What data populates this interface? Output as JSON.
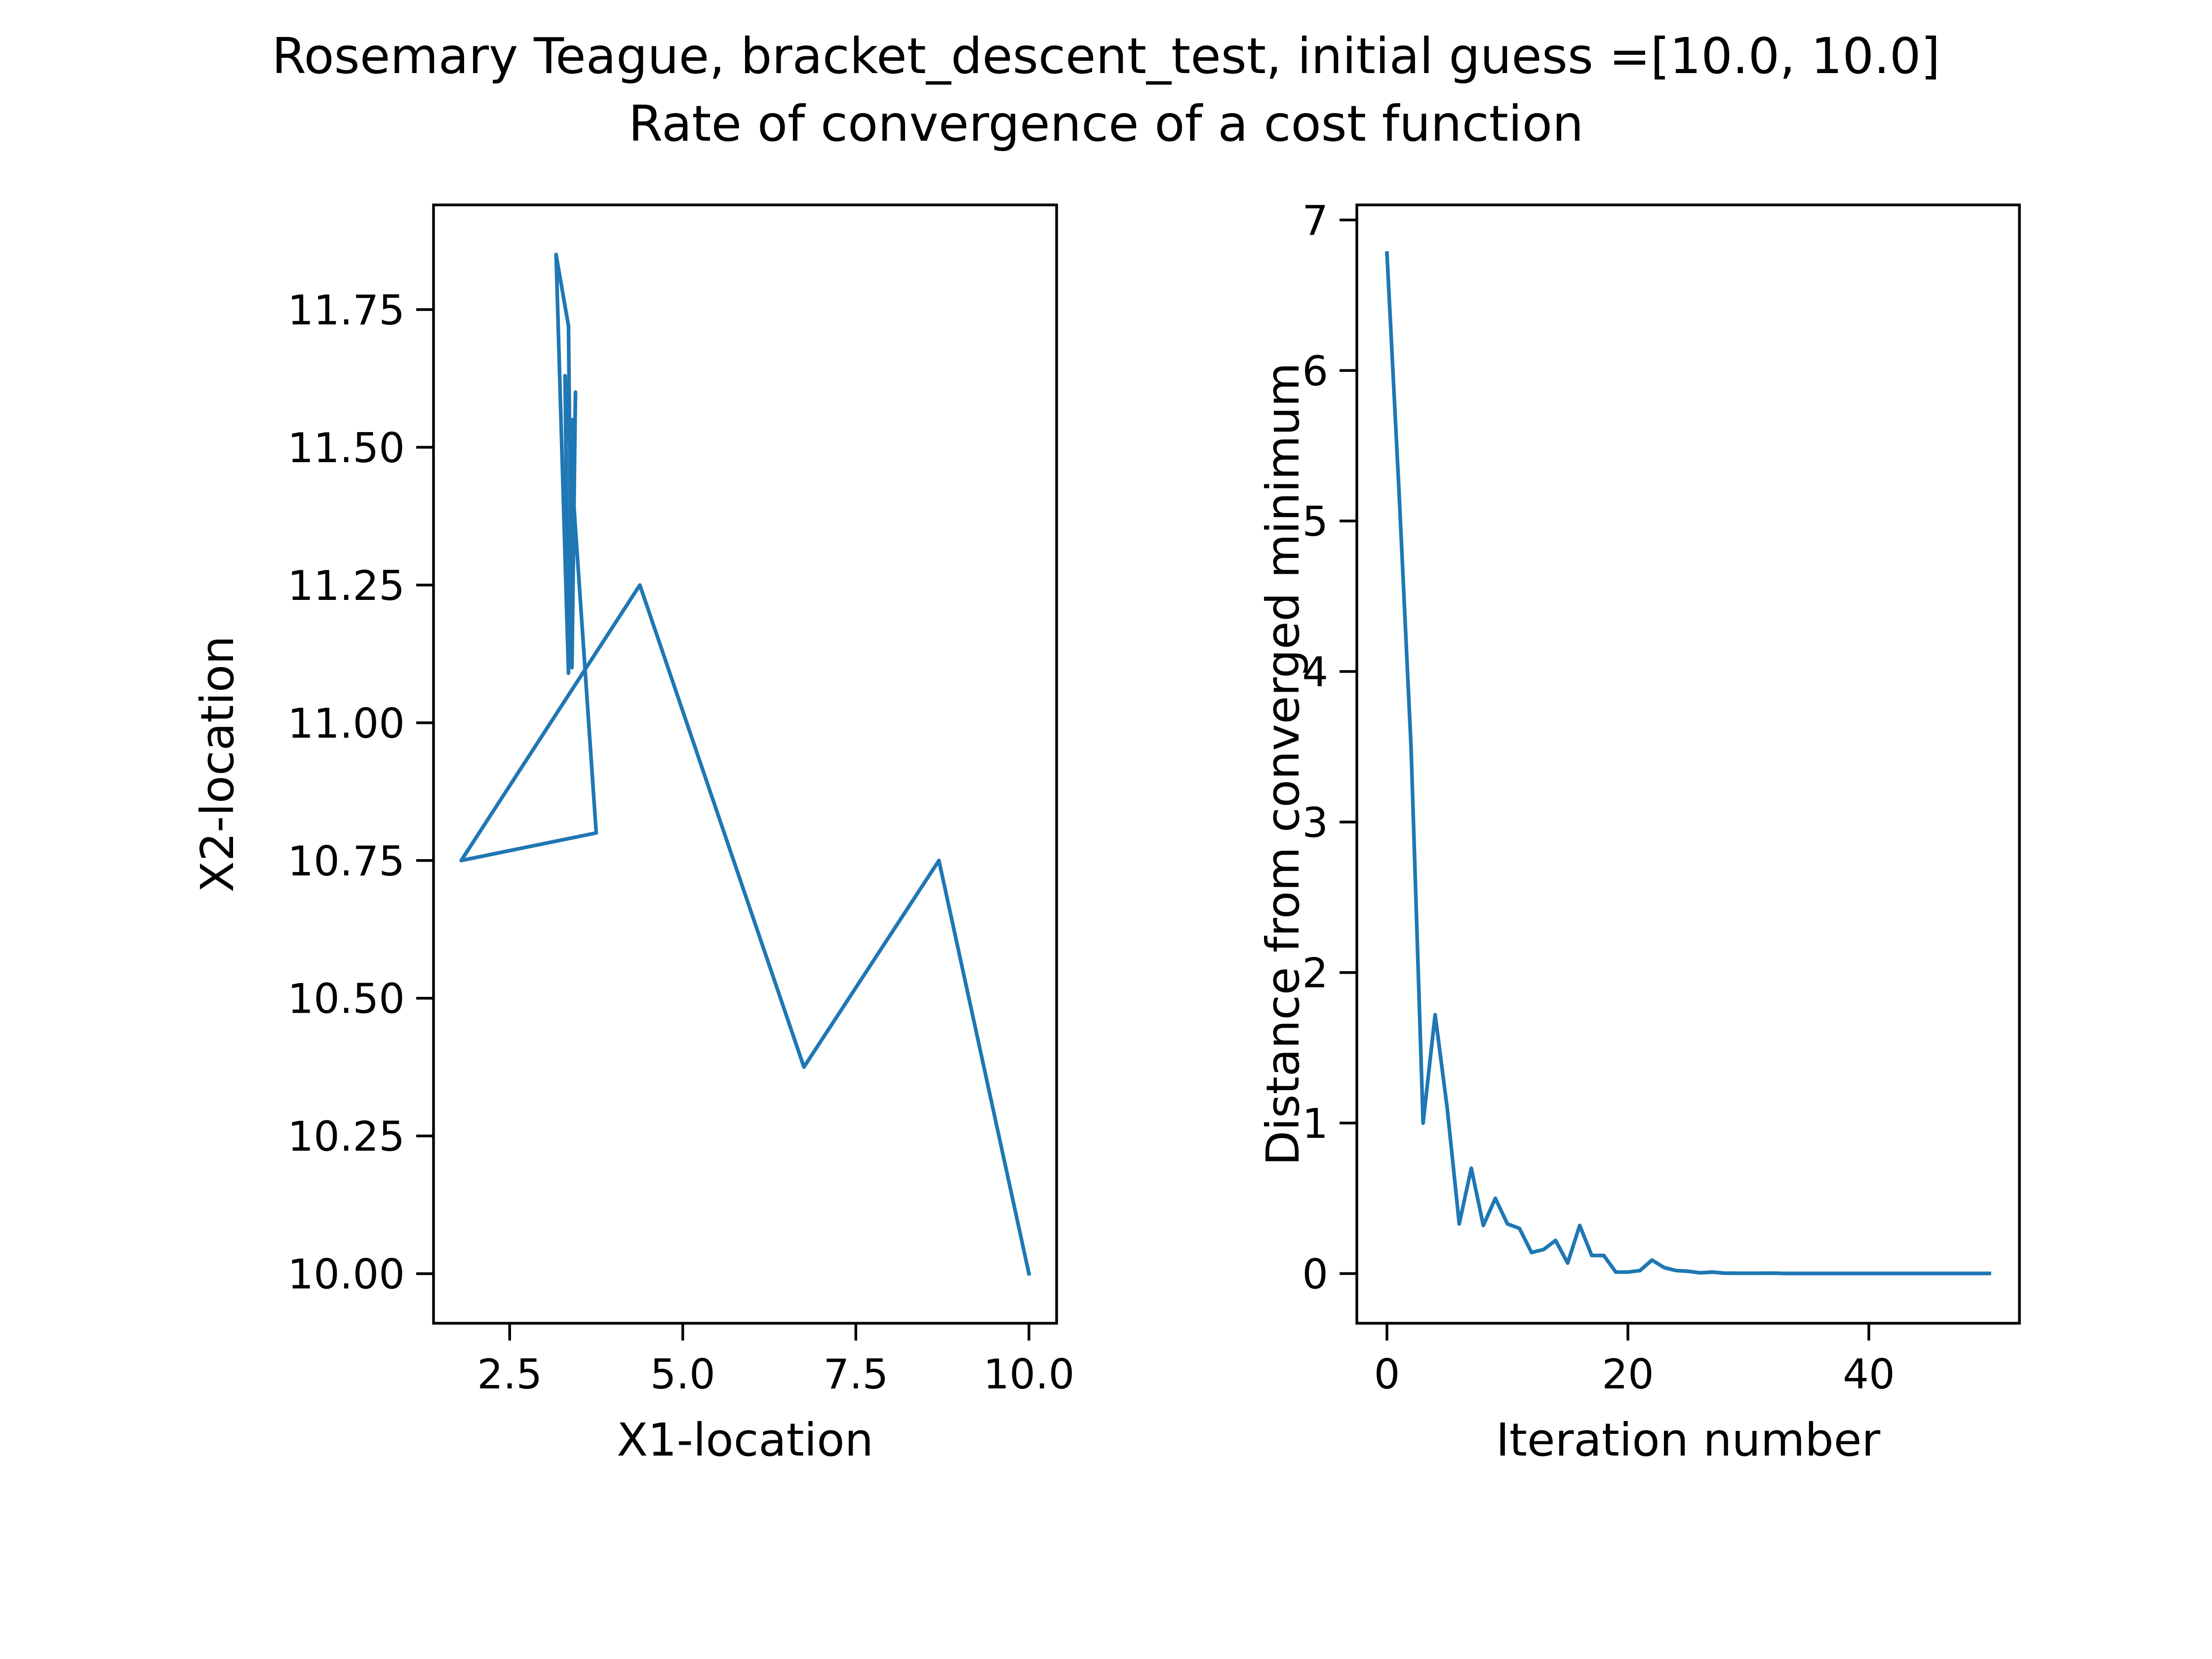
{
  "figure": {
    "title": "Rosemary Teague, bracket_descent_test, initial guess =[10.0, 10.0]",
    "subtitle": "Rate of convergence of a cost function"
  },
  "colors": {
    "series": "#1f77b4",
    "background": "#ffffff",
    "axes": "#000000"
  },
  "chart_data": [
    {
      "type": "line",
      "title": "",
      "xlabel": "X1-location",
      "ylabel": "X2-location",
      "xlim": [
        1.4,
        10.4
      ],
      "ylim": [
        9.91,
        11.94
      ],
      "xticks": [
        2.5,
        5.0,
        7.5,
        10.0
      ],
      "xtick_labels": [
        "2.5",
        "5.0",
        "7.5",
        "10.0"
      ],
      "yticks": [
        10.0,
        10.25,
        10.5,
        10.75,
        11.0,
        11.25,
        11.5,
        11.75
      ],
      "ytick_labels": [
        "10.00",
        "10.25",
        "10.50",
        "10.75",
        "11.00",
        "11.25",
        "11.50",
        "11.75"
      ],
      "grid": false,
      "series": [
        {
          "x": [
            10.0,
            8.7,
            6.75,
            4.38,
            1.8,
            3.75,
            3.3,
            3.35,
            3.17,
            3.35,
            3.4,
            3.45,
            3.41,
            3.37,
            3.43,
            3.4
          ],
          "y": [
            10.0,
            10.75,
            10.375,
            11.25,
            10.75,
            10.8,
            11.63,
            11.09,
            11.85,
            11.72,
            11.1,
            11.6,
            11.25,
            11.5,
            11.35,
            11.55
          ]
        }
      ]
    },
    {
      "type": "line",
      "title": "",
      "xlabel": "Iteration number",
      "ylabel": "Distance from converged minimum",
      "xlim": [
        -2.5,
        52.5
      ],
      "ylim": [
        -0.33,
        7.1
      ],
      "xticks": [
        0,
        20,
        40
      ],
      "xtick_labels": [
        "0",
        "20",
        "40"
      ],
      "yticks": [
        0,
        1,
        2,
        3,
        4,
        5,
        6,
        7
      ],
      "ytick_labels": [
        "0",
        "1",
        "2",
        "3",
        "4",
        "5",
        "6",
        "7"
      ],
      "grid": false,
      "series": [
        {
          "x": [
            0,
            1,
            2,
            3,
            4,
            5,
            6,
            7,
            8,
            9,
            10,
            11,
            12,
            13,
            14,
            15,
            16,
            17,
            18,
            19,
            20,
            21,
            22,
            23,
            24,
            25,
            26,
            27,
            28,
            29,
            30,
            31,
            32,
            33,
            34,
            35,
            36,
            37,
            38,
            39,
            40,
            41,
            42,
            43,
            44,
            45,
            46,
            47,
            48,
            49,
            50
          ],
          "y": [
            6.78,
            5.2,
            3.5,
            1.0,
            1.72,
            1.1,
            0.33,
            0.7,
            0.32,
            0.5,
            0.33,
            0.3,
            0.14,
            0.16,
            0.22,
            0.07,
            0.32,
            0.12,
            0.12,
            0.01,
            0.01,
            0.02,
            0.09,
            0.04,
            0.02,
            0.015,
            0.005,
            0.01,
            0.003,
            0.002,
            0.002,
            0.002,
            0.003,
            0.001,
            0.001,
            0.001,
            0.001,
            0.001,
            0.001,
            0.001,
            0.001,
            0.001,
            0.001,
            0.001,
            0.001,
            0.001,
            0.001,
            0.001,
            0.001,
            0.001,
            0.001
          ]
        }
      ]
    }
  ]
}
